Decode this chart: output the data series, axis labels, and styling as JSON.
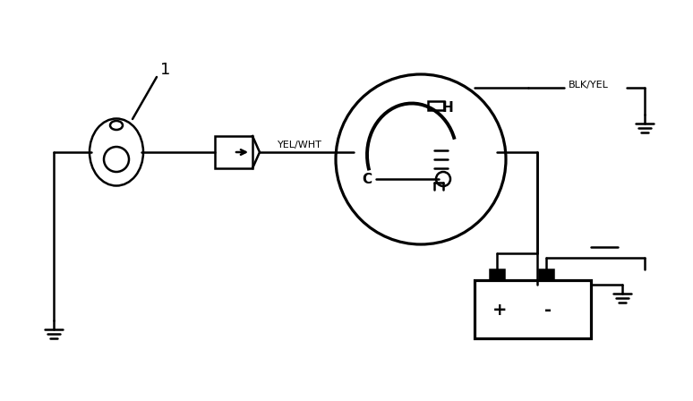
{
  "bg_color": "#ffffff",
  "line_color": "#000000",
  "title": "",
  "fig_width": 7.74,
  "fig_height": 4.48,
  "dpi": 100,
  "label_1": "1",
  "label_yelwht": "YEL/WHT",
  "label_blkyel": "BLK/YEL",
  "label_H": "H",
  "label_C": "C",
  "label_plus": "+",
  "label_minus": "-"
}
